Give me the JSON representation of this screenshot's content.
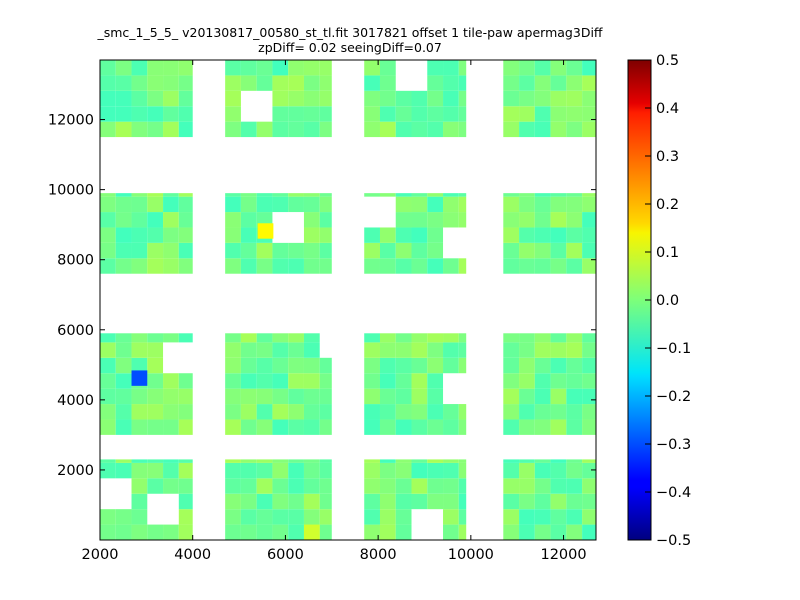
{
  "chart_data": {
    "type": "heatmap",
    "title_line1": "_smc_1_5_5_ v20130817_00580_st_tl.fit 3017821 offset 1 tile-paw apermag3Diff",
    "title_line2": "zpDiff= 0.02 seeingDiff=0.07",
    "xlabel": "",
    "ylabel": "",
    "xlim": [
      2000,
      12700
    ],
    "ylim": [
      0,
      13700
    ],
    "x_ticks": [
      2000,
      4000,
      6000,
      8000,
      10000,
      12000
    ],
    "y_ticks": [
      2000,
      4000,
      6000,
      8000,
      10000,
      12000
    ],
    "colorbar": {
      "vmin": -0.5,
      "vmax": 0.5,
      "ticks": [
        0.5,
        0.4,
        0.3,
        0.2,
        0.1,
        0.0,
        -0.1,
        -0.2,
        -0.3,
        -0.4,
        -0.5
      ],
      "tick_labels": [
        "0.5",
        "0.4",
        "0.3",
        "0.2",
        "0.1",
        "0.0",
        "−0.1",
        "−0.2",
        "−0.3",
        "−0.4",
        "−0.5"
      ],
      "colormap": "jet"
    },
    "cell_width": 340,
    "cell_height": 440,
    "x_origin": 2000,
    "y_origin": 0,
    "rows": [
      "00000000000000000000000000000000",
      "00012000000000000000000000000000",
      "00000000000000000000000000000000",
      "00000000000000000000000000000000",
      "00000000000000000000000000000000",
      "00000000000000000000000000000000",
      "00000000000000000000000000000000",
      "00000000000000000000000000000000",
      "00000000000000000000000000000000",
      "00000000000000000000000000000000",
      "00000000000000000000000000000000",
      "00000000000000000000000000000000",
      "00000000000000000000000000000000",
      "00000000000000000000000000000000",
      "00000000000000000000000000000000",
      "00000000000000000000000000000000",
      "00000000000000000000000000000000",
      "00000000000000000000000000000000",
      "00000000000000000000000000000000",
      "00000000000000000000000000000000",
      "00000000000000000000000000000000",
      "00000000000000000000000000000000",
      "00000000000000000000000000000000",
      "00000000000000000000000000000000",
      "00000000000000000000000000000000",
      "00000000000000000000000000000000",
      "00000000000000000000000000000000",
      "00000000000000000000000000000000",
      "00000000000000000000000000000000",
      "00000000000000000000000000000000",
      "00000000000000000000000000000000",
      "00000000000000000000000000000000"
    ],
    "special_cells": [
      {
        "x": 2680,
        "y": 4400,
        "value": -0.3
      },
      {
        "x": 5400,
        "y": 8600,
        "value": 0.13
      },
      {
        "x": 6400,
        "y": 0,
        "value": 0.08
      }
    ],
    "typical_value_range": [
      -0.1,
      0.06
    ]
  }
}
